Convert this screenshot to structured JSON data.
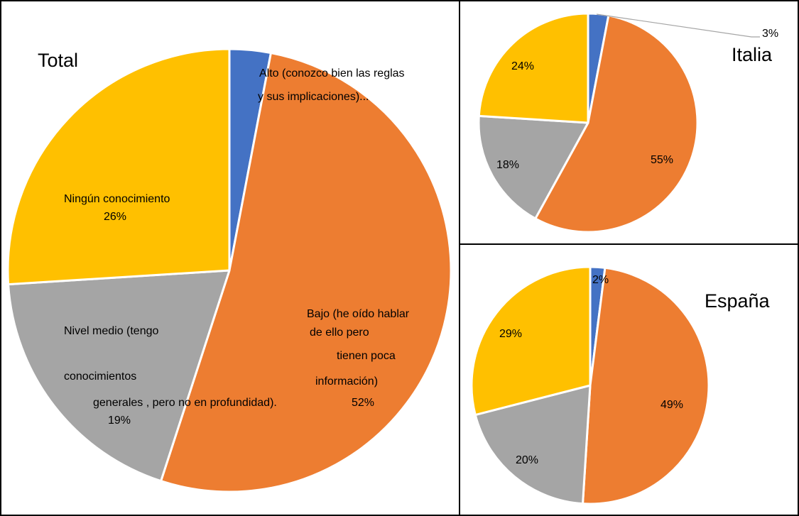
{
  "colors": {
    "alto": "#4472C4",
    "bajo": "#ED7D31",
    "medio": "#A5A5A5",
    "ninguno": "#FFC000"
  },
  "chart_data": [
    {
      "type": "pie",
      "title": "Total",
      "categories": [
        "Alto (conozco bien las reglas y sus implicaciones)...",
        "Bajo (he oído hablar de ello pero tienen poca información)",
        "Nivel medio (tengo conocimientos generales , pero no en profundidad).",
        "Ningún conocimiento"
      ],
      "values": [
        3,
        52,
        19,
        26
      ],
      "labels": [
        [
          "Alto (conozco bien las reglas",
          "y sus implicaciones)..."
        ],
        [
          "Bajo (he oído hablar",
          "de ello pero",
          "tienen poca",
          "información)",
          "52%"
        ],
        [
          "Nivel medio (tengo",
          "conocimientos",
          "generales , pero no en profundidad).",
          "19%"
        ],
        [
          "Ningún conocimiento",
          "26%"
        ]
      ]
    },
    {
      "type": "pie",
      "title": "Italia",
      "values": [
        3,
        55,
        18,
        24
      ],
      "labels": [
        "3%",
        "55%",
        "18%",
        "24%"
      ]
    },
    {
      "type": "pie",
      "title": "España",
      "values": [
        2,
        49,
        20,
        29
      ],
      "labels": [
        "2%",
        "49%",
        "20%",
        "29%"
      ]
    }
  ]
}
